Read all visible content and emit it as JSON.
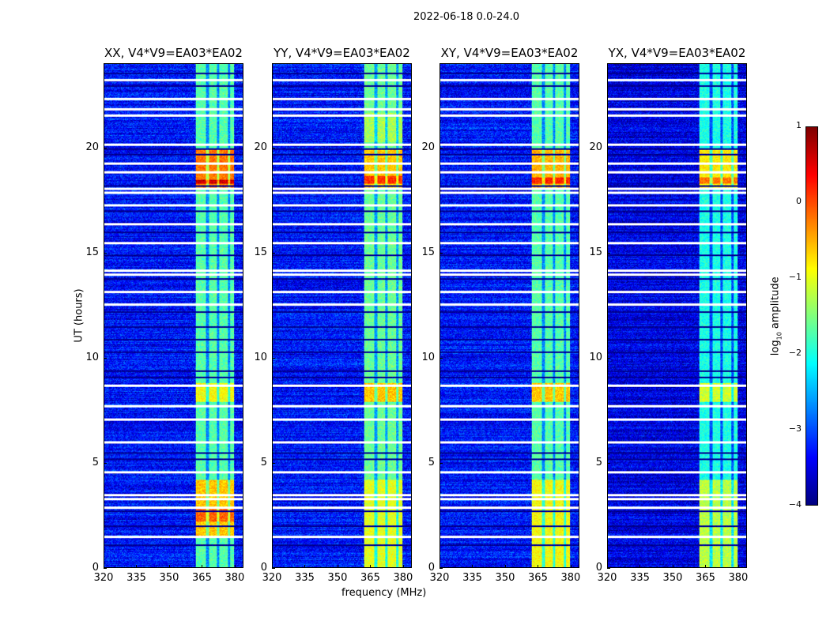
{
  "chart_data": {
    "type": "heatmap",
    "title": "2022-06-18 0.0-24.0",
    "xlabel": "frequency (MHz)",
    "ylabel": "UT (hours)",
    "xlim": [
      320,
      384
    ],
    "ylim": [
      0,
      24
    ],
    "xticks": [
      "320",
      "335",
      "350",
      "365",
      "380"
    ],
    "xtick_values": [
      320,
      335,
      350,
      365,
      380
    ],
    "yticks": [
      "0",
      "5",
      "10",
      "15",
      "20"
    ],
    "ytick_values": [
      0,
      5,
      10,
      15,
      20
    ],
    "colorbar": {
      "label_prefix": "log",
      "label_sub": "10",
      "label_suffix": " amplitude",
      "ticks": [
        "1",
        "0",
        "−1",
        "−2",
        "−3",
        "−4"
      ],
      "tick_values": [
        1,
        0,
        -1,
        -2,
        -3,
        -4
      ],
      "range": [
        -4,
        1
      ],
      "colormap": "jet"
    },
    "panels": [
      {
        "title": "XX, V4*V9=EA03*EA02",
        "background": -3.3,
        "band_level": -1.7,
        "bright": [
          {
            "t": [
              18,
              20
            ],
            "v": -0.2
          },
          {
            "t": [
              18.3,
              18.5
            ],
            "v": 0.6
          },
          {
            "t": [
              7.9,
              8.8
            ],
            "v": -0.9
          },
          {
            "t": [
              1.5,
              4.2
            ],
            "v": -0.6
          },
          {
            "t": [
              2.2,
              2.8
            ],
            "v": -0.1
          }
        ]
      },
      {
        "title": "YY, V4*V9=EA03*EA02",
        "background": -3.3,
        "band_level": -1.6,
        "bright": [
          {
            "t": [
              18,
              20
            ],
            "v": -0.6
          },
          {
            "t": [
              18.3,
              18.7
            ],
            "v": 0.1
          },
          {
            "t": [
              7.9,
              8.8
            ],
            "v": -0.6
          },
          {
            "t": [
              0,
              4.2
            ],
            "v": -1.0
          },
          {
            "t": [
              20.3,
              21.7
            ],
            "v": -1.3
          }
        ]
      },
      {
        "title": "XY, V4*V9=EA03*EA02",
        "background": -3.3,
        "band_level": -1.7,
        "bright": [
          {
            "t": [
              18,
              20
            ],
            "v": -0.5
          },
          {
            "t": [
              18.3,
              18.6
            ],
            "v": 0.2
          },
          {
            "t": [
              7.9,
              8.8
            ],
            "v": -0.6
          },
          {
            "t": [
              0,
              4.2
            ],
            "v": -0.9
          }
        ]
      },
      {
        "title": "YX, V4*V9=EA03*EA02",
        "background": -3.5,
        "band_level": -2.0,
        "bright": [
          {
            "t": [
              18,
              20
            ],
            "v": -0.8
          },
          {
            "t": [
              18.3,
              18.6
            ],
            "v": -0.2
          },
          {
            "t": [
              7.9,
              8.8
            ],
            "v": -1.1
          },
          {
            "t": [
              0,
              4.2
            ],
            "v": -1.2
          }
        ]
      }
    ],
    "rfi_band_mhz": [
      362,
      380
    ],
    "flagged_hours_white": [
      23.3,
      22.4,
      21.9,
      21.6,
      20.2,
      19.3,
      18.9,
      18.1,
      17.9,
      17.3,
      16.4,
      15.5,
      14.2,
      14.0,
      13.2,
      12.6,
      8.7,
      7.75,
      7.1,
      6.0,
      4.6,
      3.5,
      3.3,
      2.9,
      1.5
    ],
    "flagged_hours_black": [
      23.6,
      23.0,
      20.0,
      19.7,
      18.2,
      17.0,
      16.0,
      14.9,
      13.8,
      12.2,
      11.5,
      10.9,
      10.3,
      9.4,
      9.1,
      5.5,
      5.2,
      2.7,
      2.0,
      1.1
    ]
  }
}
